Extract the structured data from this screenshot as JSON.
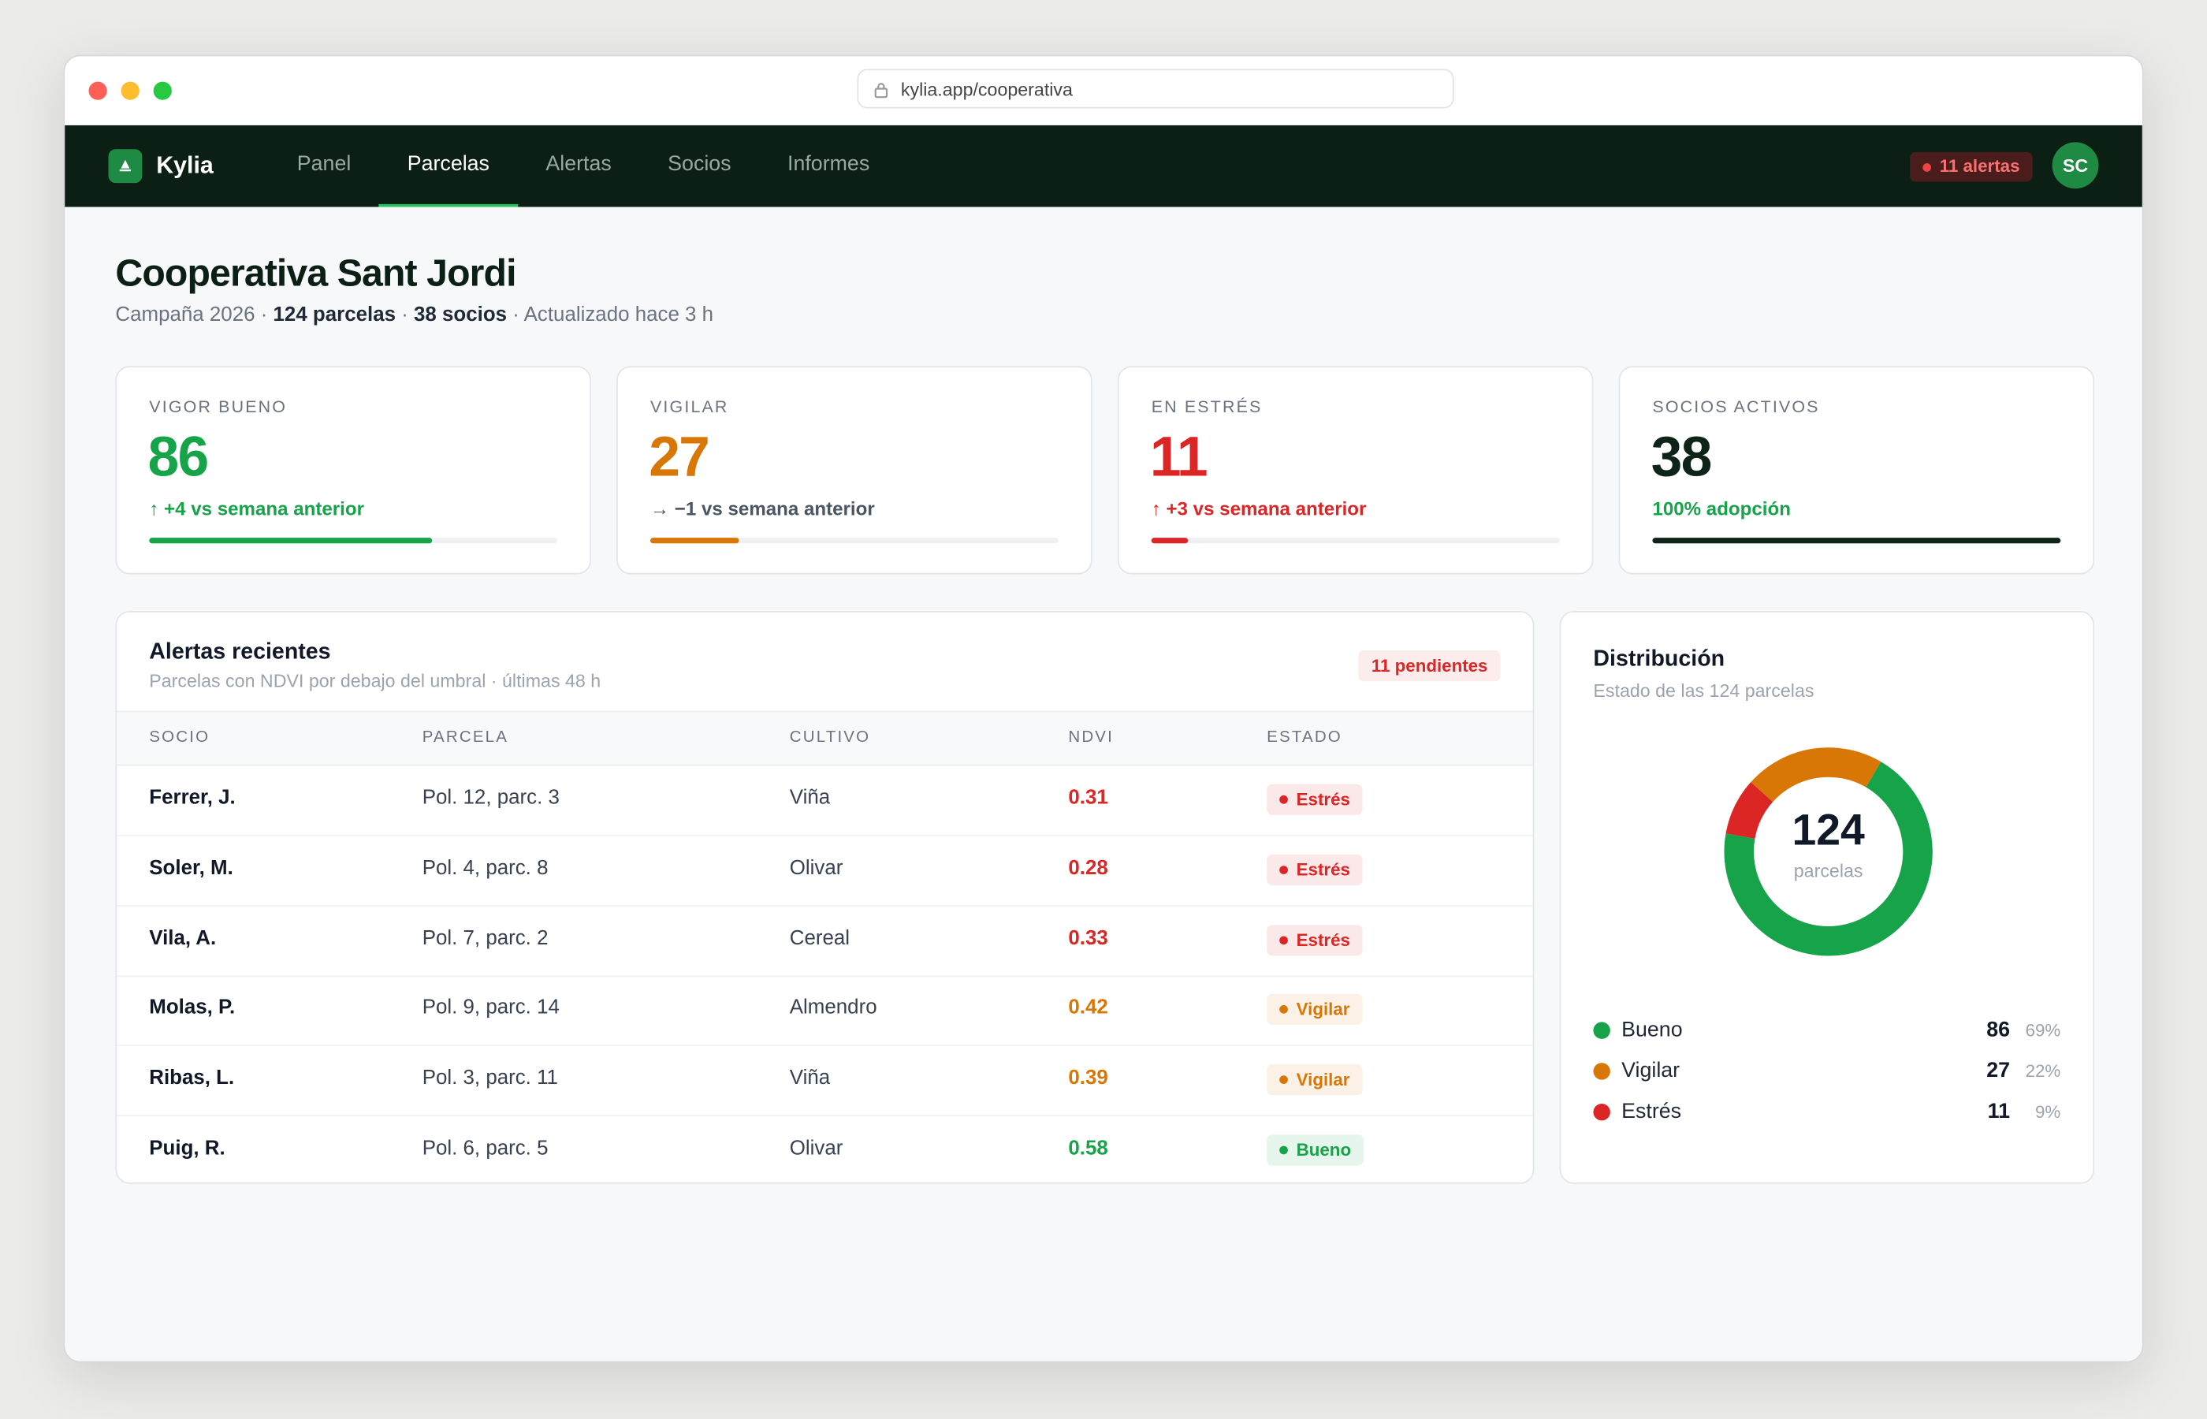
{
  "browser": {
    "url": "kylia.app/cooperativa"
  },
  "nav": {
    "brand": "Kylia",
    "items": [
      {
        "label": "Panel",
        "active": false
      },
      {
        "label": "Parcelas",
        "active": true
      },
      {
        "label": "Alertas",
        "active": false
      },
      {
        "label": "Socios",
        "active": false
      },
      {
        "label": "Informes",
        "active": false
      }
    ],
    "alerts": "11 alertas",
    "avatar": "SC"
  },
  "header": {
    "title": "Cooperativa Sant Jordi",
    "subtitle": [
      "Campaña 2026 · ",
      "124 parcelas",
      " · ",
      "38 socios",
      " · Actualizado hace 3 h"
    ]
  },
  "kpis": [
    {
      "label": "VIGOR BUENO",
      "value": 86,
      "delta": "↑ +4 vs semana anterior",
      "color": "#16a34a",
      "delta_color": "#16a34a"
    },
    {
      "label": "VIGILAR",
      "value": 27,
      "delta": "→ −1 vs semana anterior",
      "color": "#d97706",
      "delta_color": "#4b5563"
    },
    {
      "label": "EN ESTRÉS",
      "value": 11,
      "delta": "↑ +3 vs semana anterior",
      "color": "#dc2626",
      "delta_color": "#dc2626"
    },
    {
      "label": "SOCIOS ACTIVOS",
      "value": 38,
      "delta": "100% adopción",
      "color": "#0f2418",
      "delta_color": "#16a34a"
    }
  ],
  "alerts": {
    "title": "Alertas recientes",
    "subtitle": "Parcelas con NDVI por debajo del umbral · últimas 48 h",
    "badge": "11 pendientes",
    "columns": [
      "SOCIO",
      "PARCELA",
      "CULTIVO",
      "NDVI",
      "ESTADO"
    ],
    "rows": [
      {
        "socio": "Ferrer, J.",
        "parcela": "Pol. 12, parc. 3",
        "cultivo": "Viña",
        "ndvi": 0.31,
        "estado": "Estrés"
      },
      {
        "socio": "Soler, M.",
        "parcela": "Pol. 4, parc. 8",
        "cultivo": "Olivar",
        "ndvi": 0.28,
        "estado": "Estrés"
      },
      {
        "socio": "Vila, A.",
        "parcela": "Pol. 7, parc. 2",
        "cultivo": "Cereal",
        "ndvi": 0.33,
        "estado": "Estrés"
      },
      {
        "socio": "Molas, P.",
        "parcela": "Pol. 9, parc. 14",
        "cultivo": "Almendro",
        "ndvi": 0.42,
        "estado": "Vigilar"
      },
      {
        "socio": "Ribas, L.",
        "parcela": "Pol. 3, parc. 11",
        "cultivo": "Viña",
        "ndvi": 0.39,
        "estado": "Vigilar"
      },
      {
        "socio": "Puig, R.",
        "parcela": "Pol. 6, parc. 5",
        "cultivo": "Olivar",
        "ndvi": 0.58,
        "estado": "Bueno"
      }
    ]
  },
  "distribution": {
    "title": "Distribución",
    "subtitle": "Estado de las 124 parcelas",
    "total": 124,
    "caption": "parcelas",
    "items": [
      {
        "label": "Bueno",
        "value": 86,
        "percent": "69%",
        "color": "#16a34a"
      },
      {
        "label": "Vigilar",
        "value": 27,
        "percent": "22%",
        "color": "#d97706"
      },
      {
        "label": "Estrés",
        "value": 11,
        "percent": "9%",
        "color": "#dc2626"
      }
    ]
  }
}
